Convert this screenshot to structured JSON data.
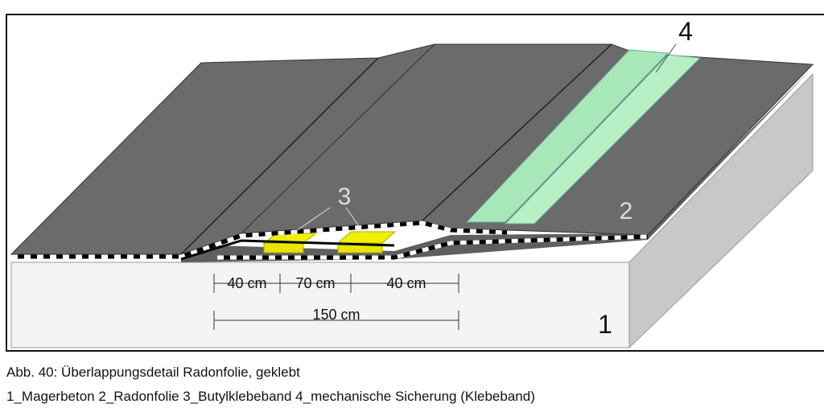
{
  "figure": {
    "labels": [
      {
        "text": "1"
      },
      {
        "text": "2"
      },
      {
        "text": "3"
      },
      {
        "text": "4"
      }
    ],
    "dimensions": [
      {
        "text": "40 cm"
      },
      {
        "text": "70 cm"
      },
      {
        "text": "40 cm"
      },
      {
        "text": "150 cm"
      }
    ],
    "caption": {
      "title": "Abb. 40: Überlappungsdetail Radonfolie, geklebt",
      "legend": "1_Magerbeton 2_Radonfolie 3_Butylklebeband 4_mechanische Sicherung (Klebeband)"
    }
  }
}
